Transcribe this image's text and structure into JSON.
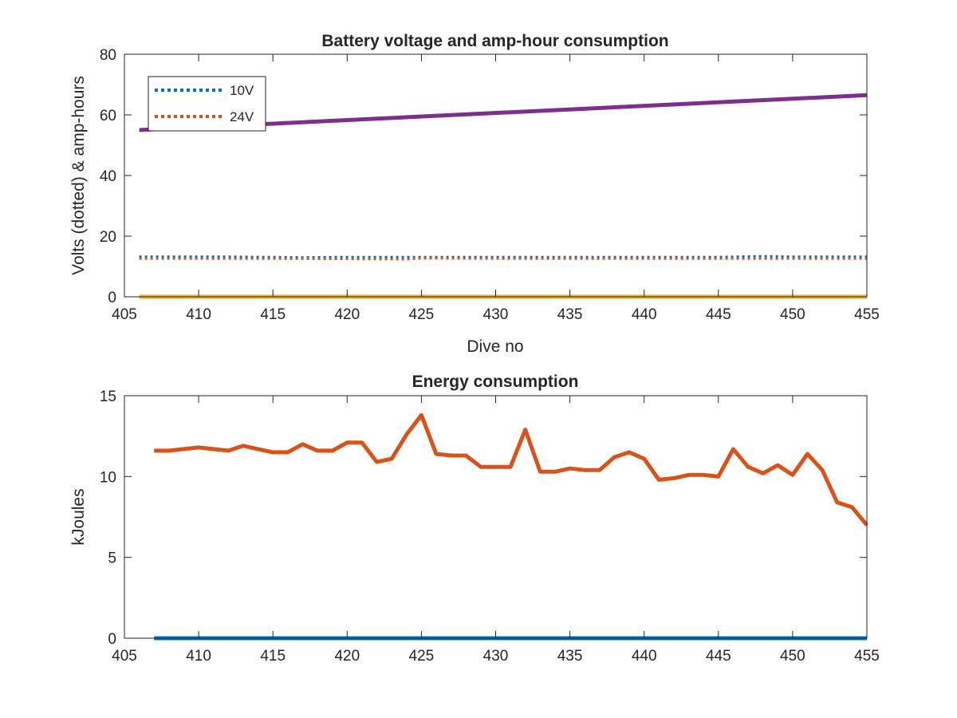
{
  "figure": {
    "background": "#ffffff",
    "axis_color": "#262626"
  },
  "chart_data": [
    {
      "type": "line",
      "title": "Battery voltage and amp-hour consumption",
      "xlabel": "Dive no",
      "ylabel": "Volts (dotted) & amp-hours",
      "xlim": [
        405,
        455
      ],
      "ylim": [
        0,
        80
      ],
      "xticks": [
        405,
        410,
        415,
        420,
        425,
        430,
        435,
        440,
        445,
        450,
        455
      ],
      "yticks": [
        0,
        20,
        40,
        60,
        80
      ],
      "grid": false,
      "legend": {
        "placement": "top-left",
        "entries": [
          {
            "label": "10V",
            "color": "#0072BD",
            "style": "dotted"
          },
          {
            "label": "24V",
            "color": "#D95319",
            "style": "dotted"
          }
        ]
      },
      "series": [
        {
          "name": "10V",
          "color": "#0072BD",
          "style": "dotted",
          "x": [
            406,
            412,
            417,
            420,
            425,
            430,
            435,
            440,
            445,
            448,
            450,
            455
          ],
          "y": [
            13.2,
            13.2,
            13.0,
            13.1,
            13.1,
            13.1,
            13.1,
            13.1,
            13.1,
            13.4,
            13.2,
            13.2
          ]
        },
        {
          "name": "24V",
          "color": "#D95319",
          "style": "dotted",
          "x": [
            406,
            415,
            424,
            425,
            430,
            435,
            440,
            445,
            450,
            455
          ],
          "y": [
            12.6,
            12.6,
            12.4,
            12.7,
            12.6,
            12.6,
            12.6,
            12.6,
            12.6,
            12.6
          ]
        },
        {
          "color": "#7E2F8E",
          "style": "solid",
          "x": [
            406,
            455
          ],
          "y": [
            55,
            66.5
          ]
        },
        {
          "color": "#EDB120",
          "style": "solid",
          "x": [
            406,
            455
          ],
          "y": [
            0,
            0
          ]
        }
      ]
    },
    {
      "type": "line",
      "title": "Energy consumption",
      "xlabel": "",
      "ylabel": "kJoules",
      "xlim": [
        405,
        455
      ],
      "ylim": [
        0,
        15
      ],
      "xticks": [
        405,
        410,
        415,
        420,
        425,
        430,
        435,
        440,
        445,
        450,
        455
      ],
      "yticks": [
        0,
        5,
        10,
        15
      ],
      "grid": false,
      "series": [
        {
          "color": "#D95319",
          "style": "solid",
          "x": [
            407,
            408,
            409,
            410,
            411,
            412,
            413,
            414,
            415,
            416,
            417,
            418,
            419,
            420,
            421,
            422,
            423,
            424,
            425,
            426,
            427,
            428,
            429,
            430,
            431,
            432,
            433,
            434,
            435,
            436,
            437,
            438,
            439,
            440,
            441,
            442,
            443,
            444,
            445,
            446,
            447,
            448,
            449,
            450,
            451,
            452,
            453,
            454,
            455
          ],
          "y": [
            11.6,
            11.6,
            11.7,
            11.8,
            11.7,
            11.6,
            11.9,
            11.7,
            11.5,
            11.5,
            12.0,
            11.6,
            11.6,
            12.1,
            12.1,
            10.9,
            11.1,
            12.6,
            13.8,
            11.4,
            11.3,
            11.3,
            10.6,
            10.6,
            10.6,
            12.9,
            10.3,
            10.3,
            10.5,
            10.4,
            10.4,
            11.2,
            11.5,
            11.1,
            9.8,
            9.9,
            10.1,
            10.1,
            10.0,
            11.7,
            10.6,
            10.2,
            10.7,
            10.1,
            11.4,
            10.4,
            8.4,
            8.1,
            7.0
          ]
        },
        {
          "color": "#0072BD",
          "style": "solid",
          "x": [
            407,
            455
          ],
          "y": [
            0,
            0
          ]
        }
      ]
    }
  ]
}
